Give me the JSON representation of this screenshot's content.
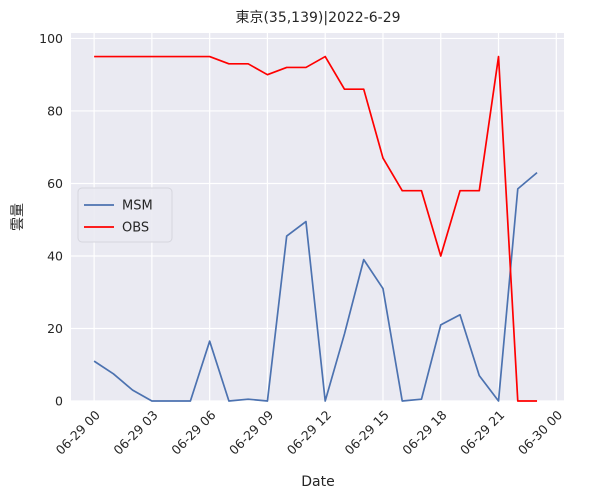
{
  "chart_data": {
    "type": "line",
    "title": "東京(35,139)|2022-6-29",
    "xlabel": "Date",
    "ylabel": "雲量",
    "x_ticks": [
      "06-29 00",
      "06-29 03",
      "06-29 06",
      "06-29 09",
      "06-29 12",
      "06-29 15",
      "06-29 18",
      "06-29 21",
      "06-30 00"
    ],
    "x_hours": [
      0,
      1,
      2,
      3,
      4,
      5,
      6,
      7,
      8,
      9,
      10,
      11,
      12,
      13,
      14,
      15,
      16,
      17,
      18,
      19,
      20,
      21,
      22,
      23
    ],
    "xlim": [
      -1.2,
      24.4
    ],
    "y_ticks": [
      0,
      20,
      40,
      60,
      80,
      100
    ],
    "ylim": [
      0,
      101.5
    ],
    "grid": true,
    "legend_position": "center-left",
    "series": [
      {
        "name": "MSM",
        "color": "#4c72b0",
        "values": [
          11,
          7.5,
          3,
          0,
          0,
          0,
          16.5,
          0,
          0.5,
          0,
          45.5,
          49.5,
          0,
          18.5,
          39,
          31,
          0,
          0.5,
          21,
          23.8,
          7,
          0,
          58.5,
          63
        ]
      },
      {
        "name": "OBS",
        "color": "#ff0000",
        "values": [
          95,
          95,
          95,
          95,
          95,
          95,
          95,
          93,
          93,
          90,
          92,
          92,
          95,
          86,
          86,
          67,
          58,
          58,
          40,
          58,
          58,
          95,
          0,
          0
        ]
      }
    ]
  }
}
